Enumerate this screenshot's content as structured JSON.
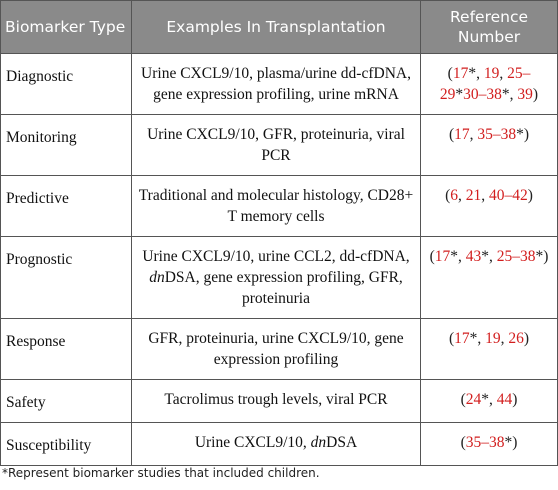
{
  "headers": {
    "col1": "Biomarker Type",
    "col2": "Examples In Transplantation",
    "col3": "Reference Number"
  },
  "rows": [
    {
      "type": "Diagnostic",
      "examples": [
        {
          "t": "Urine CXCL9/10, plasma/urine dd-cfDNA, gene expression profiling, urine mRNA",
          "i": false
        }
      ],
      "refs": [
        {
          "t": "(",
          "c": "dark"
        },
        {
          "t": "17",
          "c": "red"
        },
        {
          "t": "*, ",
          "c": "dark"
        },
        {
          "t": "19",
          "c": "red"
        },
        {
          "t": ", ",
          "c": "dark"
        },
        {
          "t": "25–29",
          "c": "red"
        },
        {
          "t": "*",
          "c": "dark"
        },
        {
          "t": "30–38",
          "c": "red"
        },
        {
          "t": "*, ",
          "c": "dark"
        },
        {
          "t": "39",
          "c": "red"
        },
        {
          "t": ")",
          "c": "dark"
        }
      ]
    },
    {
      "type": "Monitoring",
      "examples": [
        {
          "t": "Urine CXCL9/10, GFR, proteinuria, viral PCR",
          "i": false
        }
      ],
      "refs": [
        {
          "t": "(",
          "c": "dark"
        },
        {
          "t": "17",
          "c": "red"
        },
        {
          "t": ", ",
          "c": "dark"
        },
        {
          "t": "35–38",
          "c": "red"
        },
        {
          "t": "*)",
          "c": "dark"
        }
      ]
    },
    {
      "type": "Predictive",
      "examples": [
        {
          "t": "Traditional and molecular histology, CD28+ T memory cells",
          "i": false
        }
      ],
      "refs": [
        {
          "t": "(",
          "c": "dark"
        },
        {
          "t": "6",
          "c": "red"
        },
        {
          "t": ", ",
          "c": "dark"
        },
        {
          "t": "21",
          "c": "red"
        },
        {
          "t": ", ",
          "c": "dark"
        },
        {
          "t": "40–42",
          "c": "red"
        },
        {
          "t": ")",
          "c": "dark"
        }
      ]
    },
    {
      "type": "Prognostic",
      "examples": [
        {
          "t": "Urine CXCL9/10, urine CCL2, dd-cfDNA, ",
          "i": false
        },
        {
          "t": "dn",
          "i": true
        },
        {
          "t": "DSA, gene expression profiling, GFR, proteinuria",
          "i": false
        }
      ],
      "refs": [
        {
          "t": "(",
          "c": "dark"
        },
        {
          "t": "17",
          "c": "red"
        },
        {
          "t": "*, ",
          "c": "dark"
        },
        {
          "t": "43",
          "c": "red"
        },
        {
          "t": "*, ",
          "c": "dark"
        },
        {
          "t": "25–38",
          "c": "red"
        },
        {
          "t": "*)",
          "c": "dark"
        }
      ]
    },
    {
      "type": "Response",
      "examples": [
        {
          "t": "GFR, proteinuria, urine CXCL9/10, gene expression profiling",
          "i": false
        }
      ],
      "refs": [
        {
          "t": "(",
          "c": "dark"
        },
        {
          "t": "17",
          "c": "red"
        },
        {
          "t": "*, ",
          "c": "dark"
        },
        {
          "t": "19",
          "c": "red"
        },
        {
          "t": ", ",
          "c": "dark"
        },
        {
          "t": "26",
          "c": "red"
        },
        {
          "t": ")",
          "c": "dark"
        }
      ]
    },
    {
      "type": "Safety",
      "examples": [
        {
          "t": "Tacrolimus trough levels, viral PCR",
          "i": false
        }
      ],
      "refs": [
        {
          "t": "(",
          "c": "dark"
        },
        {
          "t": "24",
          "c": "red"
        },
        {
          "t": "*, ",
          "c": "dark"
        },
        {
          "t": "44",
          "c": "red"
        },
        {
          "t": ")",
          "c": "dark"
        }
      ]
    },
    {
      "type": "Susceptibility",
      "examples": [
        {
          "t": "Urine CXCL9/10, ",
          "i": false
        },
        {
          "t": "dn",
          "i": true
        },
        {
          "t": "DSA",
          "i": false
        }
      ],
      "refs": [
        {
          "t": "(",
          "c": "dark"
        },
        {
          "t": "35–38",
          "c": "red"
        },
        {
          "t": "*)",
          "c": "dark"
        }
      ]
    }
  ],
  "footnote": "*Represent biomarker studies that included children.",
  "colors": {
    "header_bg": "#8a8a8a",
    "header_text": "#ffffff",
    "reference_link": "#d21e1e",
    "border": "#555555"
  }
}
